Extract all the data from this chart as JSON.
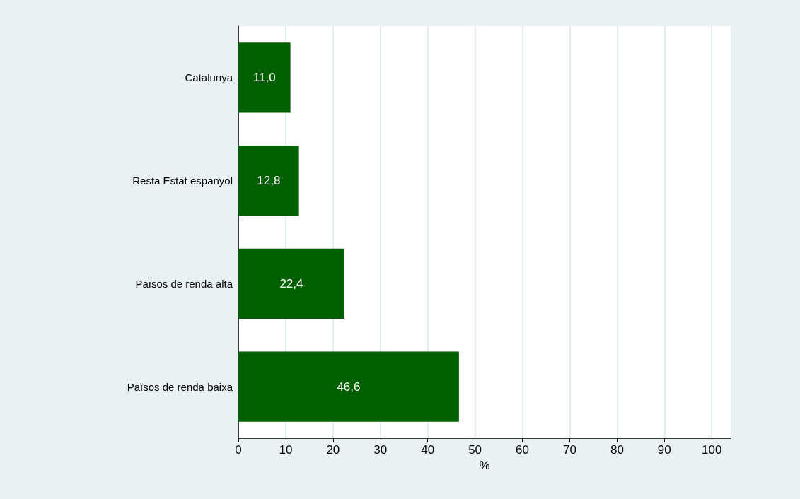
{
  "chart_data": {
    "type": "bar",
    "orientation": "horizontal",
    "categories": [
      "Catalunya",
      "Resta Estat espanyol",
      "Països de renda alta",
      "Països de renda baixa"
    ],
    "values": [
      11.0,
      12.8,
      22.4,
      46.6
    ],
    "value_labels": [
      "11,0",
      "12,8",
      "22,4",
      "46,6"
    ],
    "color": "#006000",
    "xlabel": "%",
    "xlim": [
      0,
      104
    ],
    "xticks": [
      0,
      10,
      20,
      30,
      40,
      50,
      60,
      70,
      80,
      90,
      100
    ],
    "grid": "x"
  }
}
